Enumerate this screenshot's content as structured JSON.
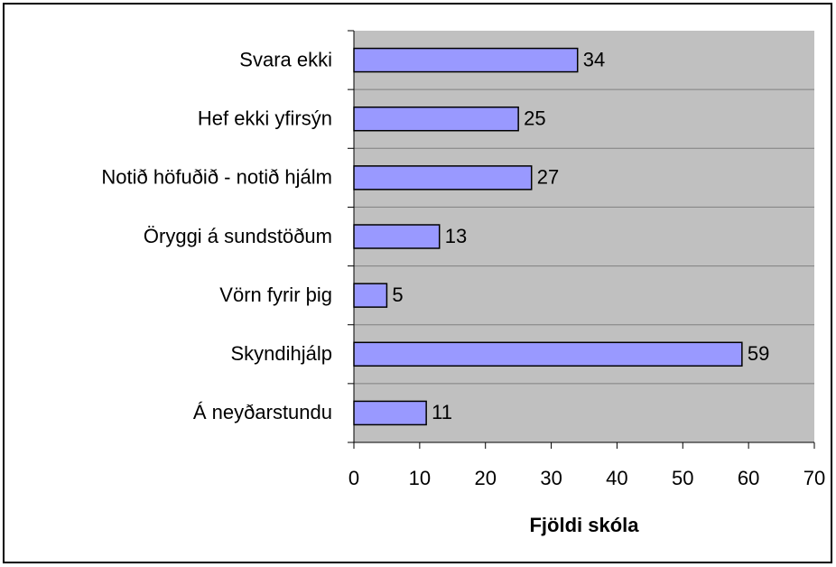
{
  "chart_data": {
    "type": "bar",
    "orientation": "horizontal",
    "categories": [
      "Svara ekki",
      "Hef ekki yfirsýn",
      "Notið höfuðið - notið hjálm",
      "Öryggi á sundstöðum",
      "Vörn fyrir þig",
      "Skyndihjálp",
      "Á neyðarstundu"
    ],
    "values": [
      34,
      25,
      27,
      13,
      5,
      59,
      11
    ],
    "color": "#9999ff",
    "x_label": "Fjöldi skóla",
    "xlim": [
      0,
      70
    ],
    "xticks": [
      0,
      10,
      20,
      30,
      40,
      50,
      60,
      70
    ]
  }
}
